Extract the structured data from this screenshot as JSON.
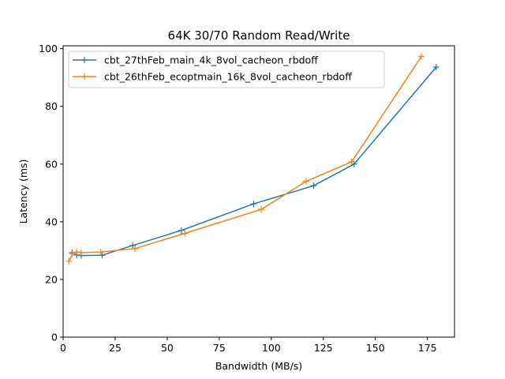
{
  "chart_data": {
    "type": "line",
    "title": "64K 30/70  Random Read/Write",
    "xlabel": "Bandwidth (MB/s)",
    "ylabel": "Latency (ms)",
    "xlim": [
      0,
      188
    ],
    "ylim": [
      0,
      101
    ],
    "xticks": [
      "0",
      "25",
      "50",
      "75",
      "100",
      "125",
      "150",
      "175"
    ],
    "yticks": [
      "0",
      "20",
      "40",
      "60",
      "80",
      "100"
    ],
    "grid": false,
    "legend_position": "top-left",
    "marker": "+",
    "series": [
      {
        "name": "cbt_27thFeb_main_4k_8vol_cacheon_rbdoff",
        "color": "#1f77b4",
        "x": [
          4.3,
          6.5,
          8.7,
          18.7,
          33.5,
          56.8,
          91.5,
          120.3,
          139.8,
          179.2
        ],
        "y": [
          29.3,
          28.5,
          28.3,
          28.4,
          31.8,
          37.0,
          46.2,
          52.5,
          60.0,
          93.6
        ]
      },
      {
        "name": "cbt_26thFeb_ecoptmain_16k_8vol_cacheon_rbdoff",
        "color": "#ff7f0e",
        "x": [
          2.8,
          4.5,
          6.5,
          8.7,
          18.1,
          34.5,
          58.5,
          95.2,
          116.7,
          138.6,
          172.1
        ],
        "y": [
          26.3,
          28.9,
          29.5,
          29.3,
          29.5,
          30.7,
          36.0,
          44.3,
          54.0,
          60.8,
          97.3
        ]
      }
    ]
  }
}
